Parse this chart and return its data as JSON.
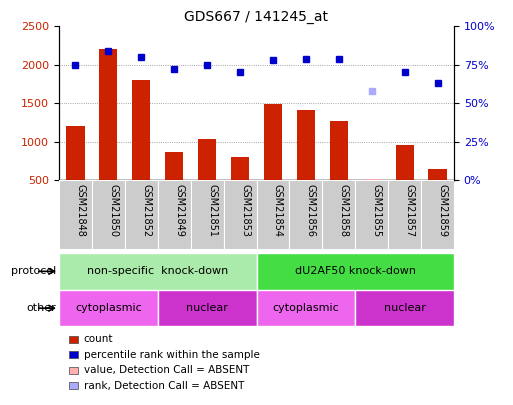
{
  "title": "GDS667 / 141245_at",
  "samples": [
    "GSM21848",
    "GSM21850",
    "GSM21852",
    "GSM21849",
    "GSM21851",
    "GSM21853",
    "GSM21854",
    "GSM21856",
    "GSM21858",
    "GSM21855",
    "GSM21857",
    "GSM21859"
  ],
  "counts": [
    1200,
    2200,
    1800,
    870,
    1040,
    800,
    1490,
    1410,
    1270,
    null,
    960,
    640
  ],
  "counts_absent": [
    null,
    null,
    null,
    null,
    null,
    null,
    null,
    null,
    null,
    520,
    null,
    null
  ],
  "ranks": [
    75,
    84,
    80,
    72,
    75,
    70,
    78,
    79,
    79,
    null,
    70,
    63
  ],
  "ranks_absent": [
    null,
    null,
    null,
    null,
    null,
    null,
    null,
    null,
    null,
    58,
    null,
    null
  ],
  "ylim_left": [
    500,
    2500
  ],
  "ylim_right": [
    0,
    100
  ],
  "yticks_left": [
    500,
    1000,
    1500,
    2000,
    2500
  ],
  "yticks_right": [
    0,
    25,
    50,
    75,
    100
  ],
  "bar_color": "#cc2200",
  "bar_absent_color": "#ffb0b0",
  "dot_color": "#0000cc",
  "dot_absent_color": "#aaaaff",
  "protocol_groups": [
    {
      "label": "non-specific  knock-down",
      "start": 0,
      "end": 6,
      "color": "#aaeaaa"
    },
    {
      "label": "dU2AF50 knock-down",
      "start": 6,
      "end": 12,
      "color": "#44dd44"
    }
  ],
  "other_groups": [
    {
      "label": "cytoplasmic",
      "start": 0,
      "end": 3,
      "color": "#ee66ee"
    },
    {
      "label": "nuclear",
      "start": 3,
      "end": 6,
      "color": "#cc33cc"
    },
    {
      "label": "cytoplasmic",
      "start": 6,
      "end": 9,
      "color": "#ee66ee"
    },
    {
      "label": "nuclear",
      "start": 9,
      "end": 12,
      "color": "#cc33cc"
    }
  ],
  "legend_items": [
    {
      "label": "count",
      "color": "#cc2200"
    },
    {
      "label": "percentile rank within the sample",
      "color": "#0000cc"
    },
    {
      "label": "value, Detection Call = ABSENT",
      "color": "#ffb0b0"
    },
    {
      "label": "rank, Detection Call = ABSENT",
      "color": "#aaaaff"
    }
  ],
  "protocol_label": "protocol",
  "other_label": "other",
  "grid_color": "#888888",
  "xticklabel_bg": "#cccccc"
}
